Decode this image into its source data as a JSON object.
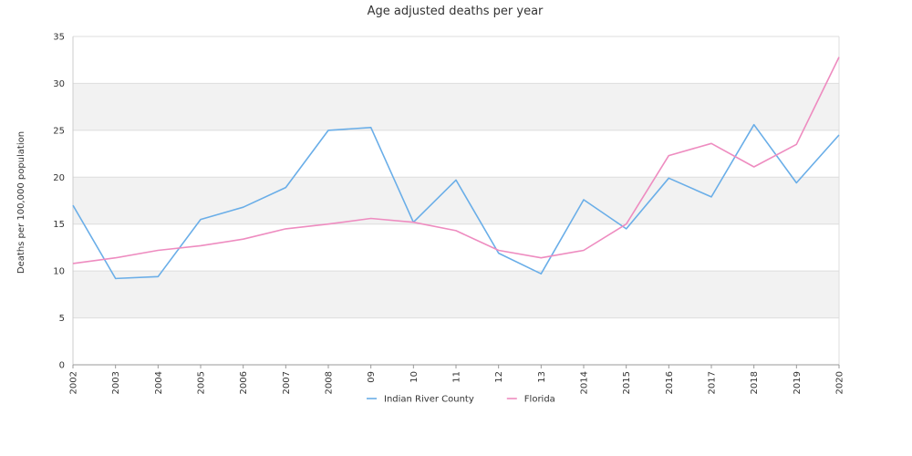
{
  "chart_data": {
    "type": "line",
    "title": "Age adjusted deaths per year",
    "ylabel": "Deaths per 100,000 population",
    "xlabel": "",
    "categories": [
      "2002",
      "2003",
      "2004",
      "2005",
      "2006",
      "2007",
      "2008",
      "09",
      "10",
      "11",
      "12",
      "13",
      "2014",
      "2015",
      "2016",
      "2017",
      "2018",
      "2019",
      "2020"
    ],
    "yticks": [
      "0",
      "5",
      "10",
      "15",
      "20",
      "25",
      "30",
      "35"
    ],
    "ylim": [
      0,
      35
    ],
    "grid": "alternating horizontal bands",
    "legend_position": "bottom-center",
    "series": [
      {
        "name": "Indian River County",
        "color": "#6aaee8",
        "values": [
          17.0,
          9.2,
          9.4,
          15.5,
          16.8,
          18.9,
          25.0,
          25.3,
          15.2,
          19.7,
          11.9,
          9.7,
          17.6,
          14.5,
          19.9,
          17.9,
          25.6,
          19.4,
          24.5
        ]
      },
      {
        "name": "Florida",
        "color": "#ee8cc0",
        "values": [
          10.8,
          11.4,
          12.2,
          12.7,
          13.4,
          14.5,
          15.0,
          15.6,
          15.2,
          14.3,
          12.2,
          11.4,
          12.2,
          15.0,
          22.3,
          23.6,
          21.1,
          23.5,
          32.8
        ]
      }
    ]
  }
}
